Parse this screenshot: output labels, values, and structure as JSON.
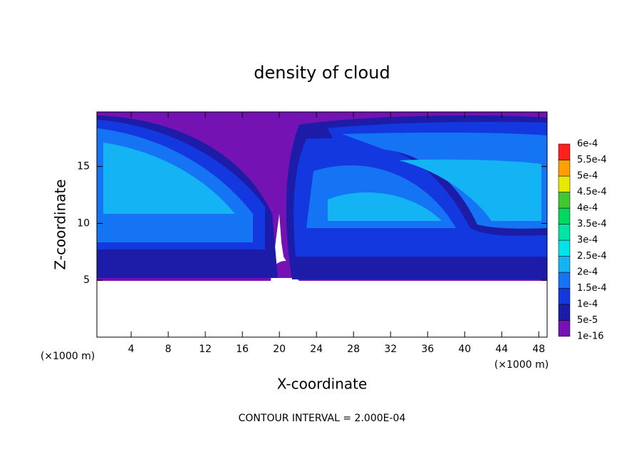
{
  "chart_data": {
    "type": "contour",
    "title": "density of cloud",
    "x_label": "X-coordinate",
    "y_label": "Z-coordinate",
    "x_unit": "(×1000 m)",
    "y_unit": "(×1000 m)",
    "note": "CONTOUR INTERVAL = 2.000E-04",
    "xlim": [
      0.3,
      48.9
    ],
    "xticks": [
      4,
      8,
      12,
      16,
      20,
      24,
      28,
      32,
      36,
      40,
      44,
      48
    ],
    "ylim": [
      0,
      19.8
    ],
    "yticks": [
      5,
      10,
      15
    ],
    "colorbar": {
      "levels": [
        "1e-16",
        "5e-5",
        "1e-4",
        "1.5e-4",
        "2e-4",
        "2.5e-4",
        "3e-4",
        "3.5e-4",
        "4e-4",
        "4.5e-4",
        "5e-4",
        "5.5e-4",
        "6e-4"
      ],
      "colors": [
        "#7412b4",
        "#1c1ca8",
        "#1438e0",
        "#1474f4",
        "#14b4f4",
        "#00e4e8",
        "#00e4a8",
        "#00d860",
        "#40c830",
        "#e8e800",
        "#ffa000",
        "#ff2020"
      ]
    }
  }
}
